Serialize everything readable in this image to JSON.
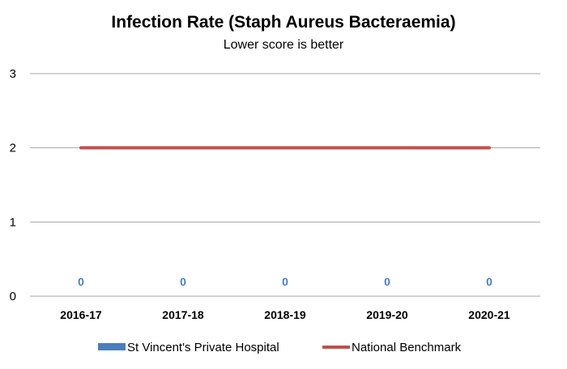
{
  "chart_data": {
    "type": "bar",
    "title": "Infection Rate (Staph Aureus Bacteraemia)",
    "subtitle": "Lower score is better",
    "categories": [
      "2016-17",
      "2017-18",
      "2018-19",
      "2019-20",
      "2020-21"
    ],
    "series": [
      {
        "name": "St Vincent's Private Hospital",
        "kind": "bar",
        "color": "#4a7ebb",
        "values": [
          0,
          0,
          0,
          0,
          0
        ],
        "data_labels": [
          "0",
          "0",
          "0",
          "0",
          "0"
        ]
      },
      {
        "name": "National Benchmark",
        "kind": "line",
        "color": "#c0504d",
        "values": [
          2,
          2,
          2,
          2,
          2
        ]
      }
    ],
    "ylim": [
      0,
      3
    ],
    "yticks": [
      0,
      1,
      2,
      3
    ],
    "xlabel": "",
    "ylabel": "",
    "grid": true,
    "legend": "bottom"
  }
}
